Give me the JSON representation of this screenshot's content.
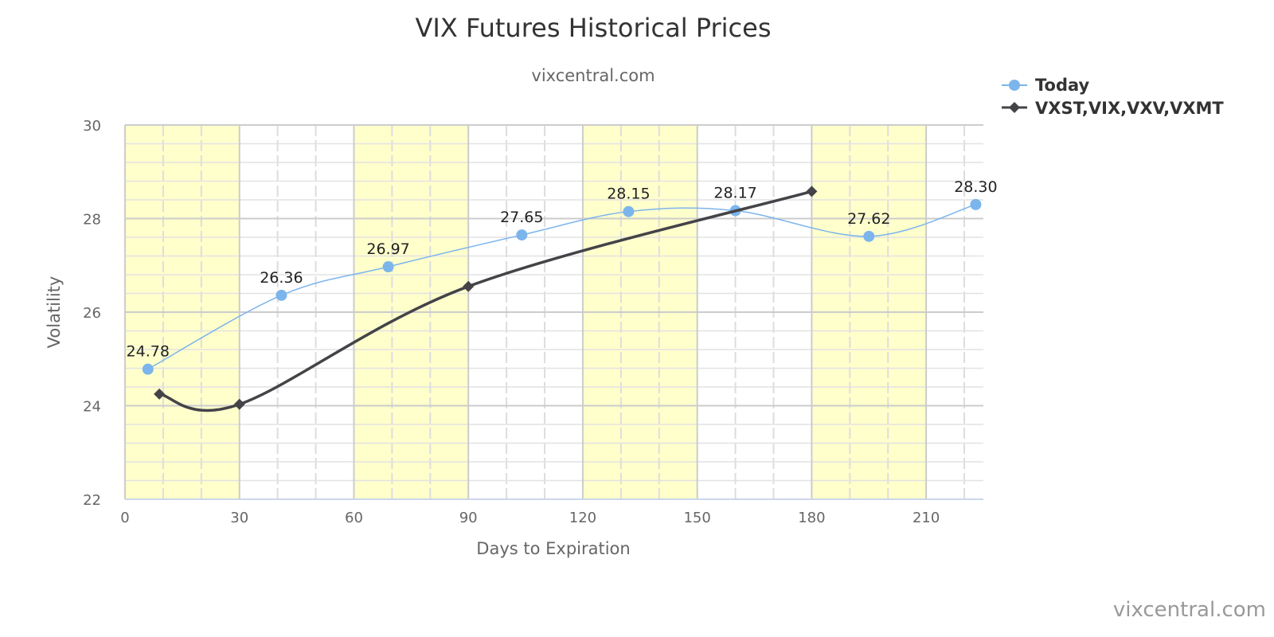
{
  "chart_data": {
    "type": "line",
    "title": "VIX Futures Historical Prices",
    "subtitle": "vixcentral.com",
    "xlabel": "Days to Expiration",
    "ylabel": "Volatility",
    "xlim": [
      0,
      225
    ],
    "ylim": [
      22,
      30
    ],
    "x_ticks": [
      0,
      30,
      60,
      90,
      120,
      150,
      180,
      210
    ],
    "y_ticks": [
      22,
      24,
      26,
      28,
      30
    ],
    "grid": true,
    "x_minor_step": 10,
    "y_minor_step": 0.4,
    "legend_position": "top-right",
    "bands": [
      [
        0,
        30
      ],
      [
        60,
        90
      ],
      [
        120,
        150
      ],
      [
        180,
        210
      ]
    ],
    "band_color": "#ffffcc",
    "series": [
      {
        "name": "Today",
        "color": "#7cb5ec",
        "marker": "circle",
        "points": [
          {
            "x": 6,
            "y": 24.78,
            "label": "24.78"
          },
          {
            "x": 41,
            "y": 26.36,
            "label": "26.36"
          },
          {
            "x": 69,
            "y": 26.97,
            "label": "26.97"
          },
          {
            "x": 104,
            "y": 27.65,
            "label": "27.65"
          },
          {
            "x": 132,
            "y": 28.15,
            "label": "28.15"
          },
          {
            "x": 160,
            "y": 28.17,
            "label": "28.17"
          },
          {
            "x": 195,
            "y": 27.62,
            "label": "27.62"
          },
          {
            "x": 223,
            "y": 28.3,
            "label": "28.30"
          }
        ]
      },
      {
        "name": "VXST,VIX,VXV,VXMT",
        "color": "#434348",
        "marker": "diamond",
        "points": [
          {
            "x": 9,
            "y": 24.25
          },
          {
            "x": 30,
            "y": 24.03
          },
          {
            "x": 90,
            "y": 26.55
          },
          {
            "x": 180,
            "y": 28.58
          }
        ]
      }
    ],
    "credit": "vixcentral.com"
  }
}
